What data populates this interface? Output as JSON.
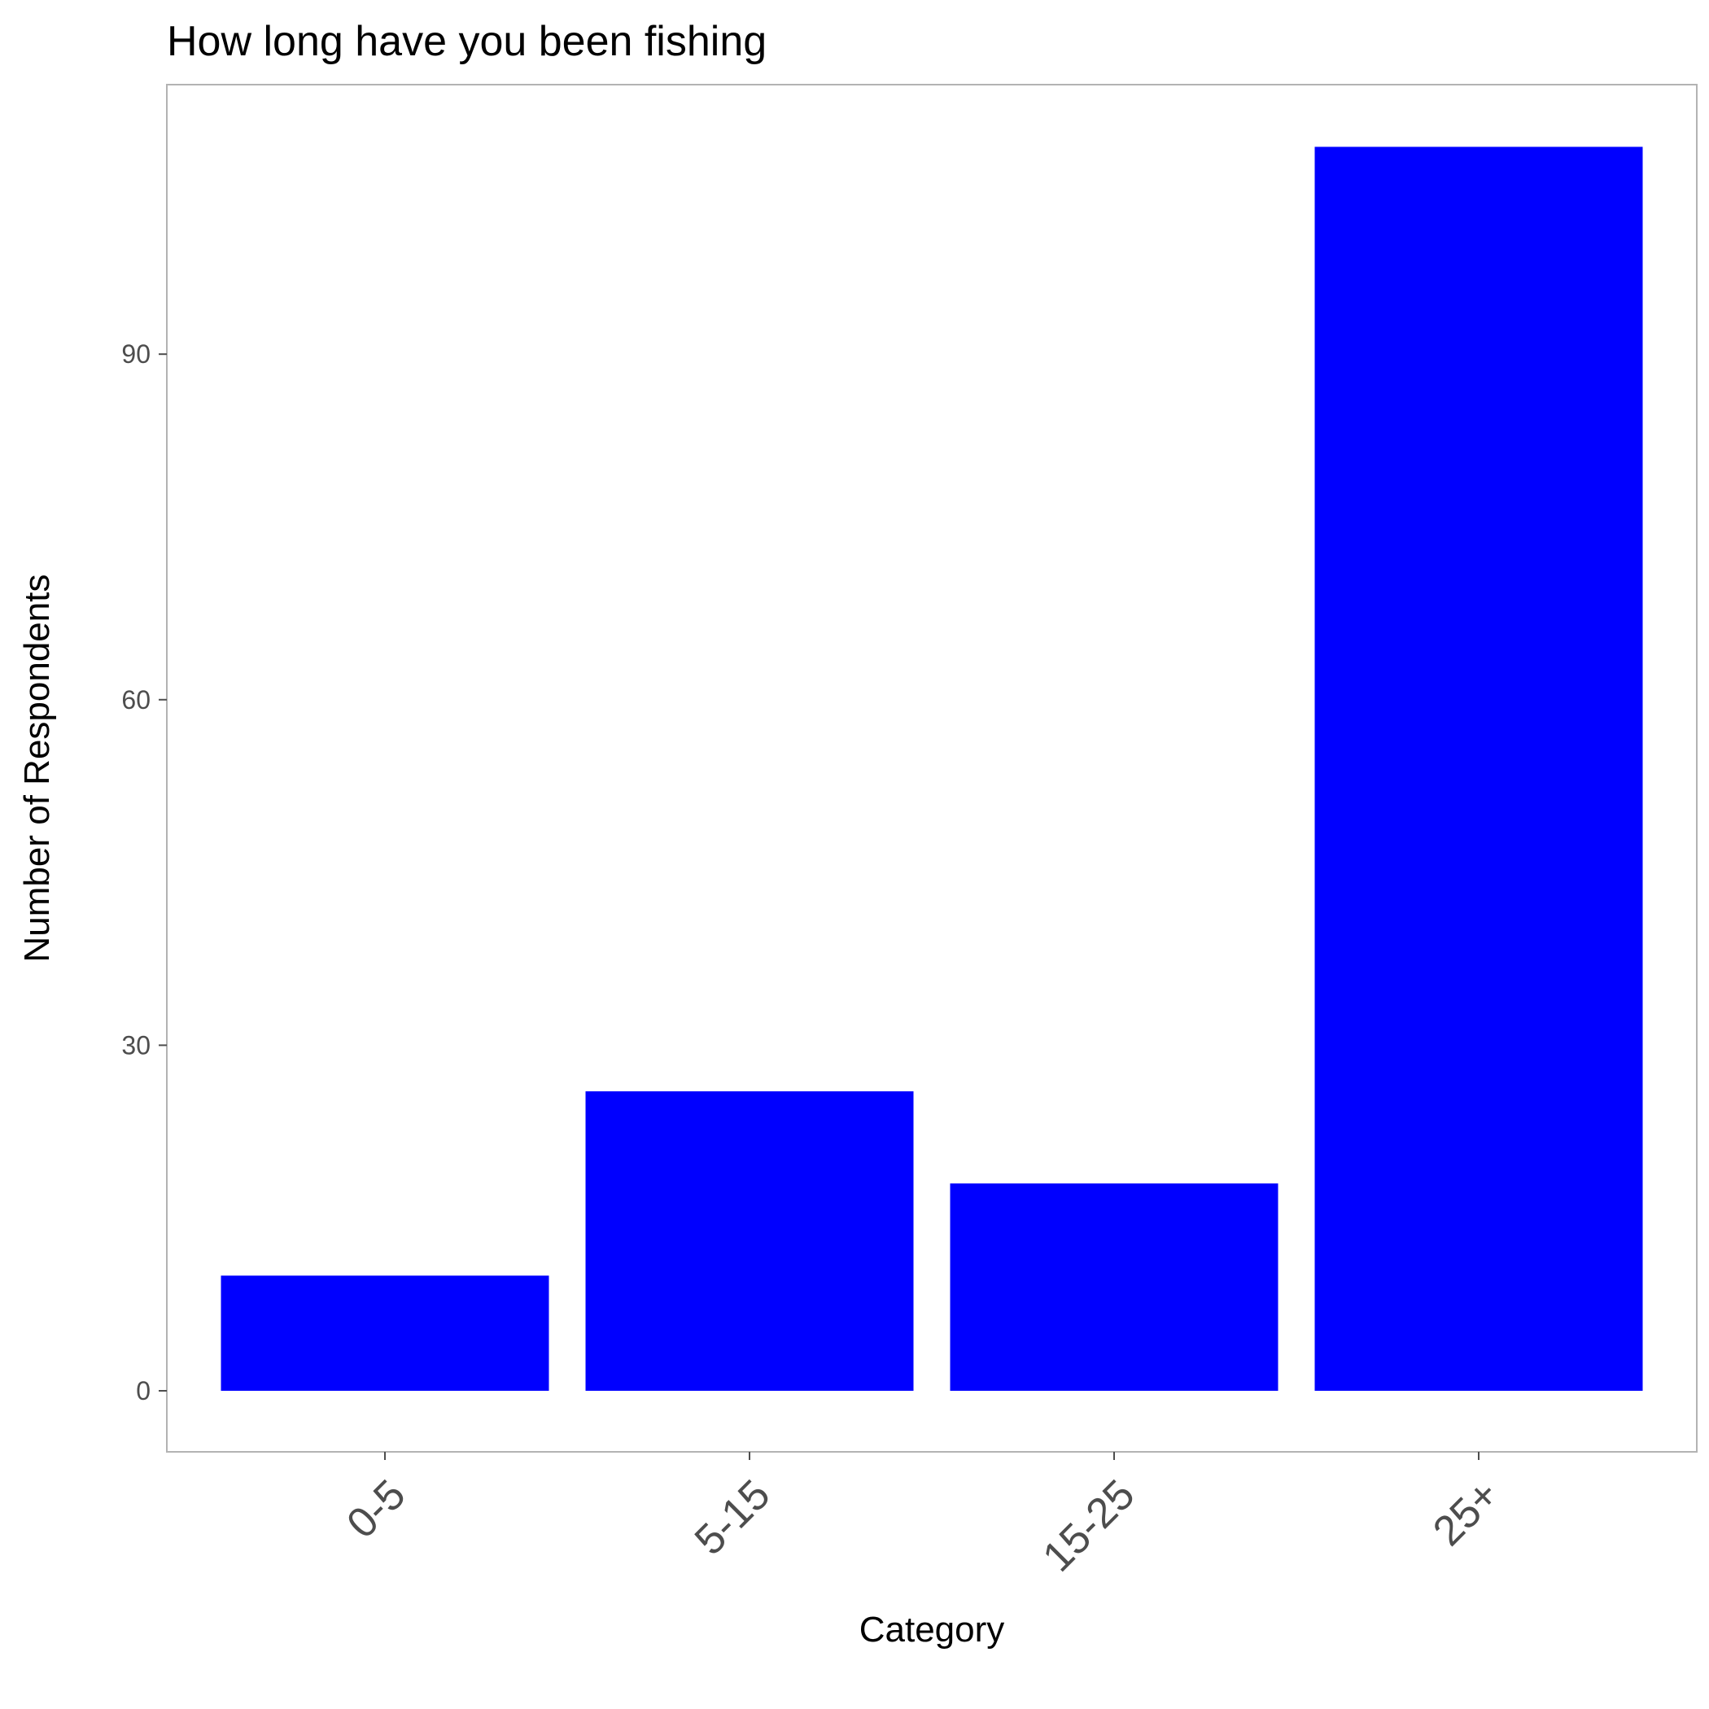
{
  "chart_data": {
    "type": "bar",
    "title": "How long have you been fishing",
    "xlabel": "Category",
    "ylabel": "Number of Respondents",
    "categories": [
      "0-5",
      "5-15",
      "15-25",
      "25+"
    ],
    "values": [
      10,
      26,
      18,
      108
    ],
    "ylim": [
      -5.3,
      113.4
    ],
    "yticks": [
      "0",
      "30",
      "60",
      "90"
    ],
    "grid": false,
    "legend": "none",
    "colors": {
      "bar": "#0000ff",
      "panel_border": "#b3b3b3",
      "tick": "#4d4d4d",
      "text": "#000000"
    }
  }
}
